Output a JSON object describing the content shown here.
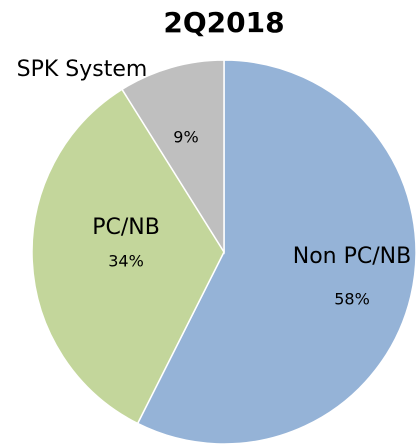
{
  "chart_data": {
    "type": "pie",
    "title": "2Q2018",
    "categories": [
      "Non PC/NB",
      "PC/NB",
      "SPK System"
    ],
    "values": [
      58,
      34,
      9
    ],
    "value_labels": [
      "58%",
      "34%",
      "9%"
    ],
    "colors": [
      "#95b3d7",
      "#c3d69b",
      "#bfbfbf"
    ]
  }
}
